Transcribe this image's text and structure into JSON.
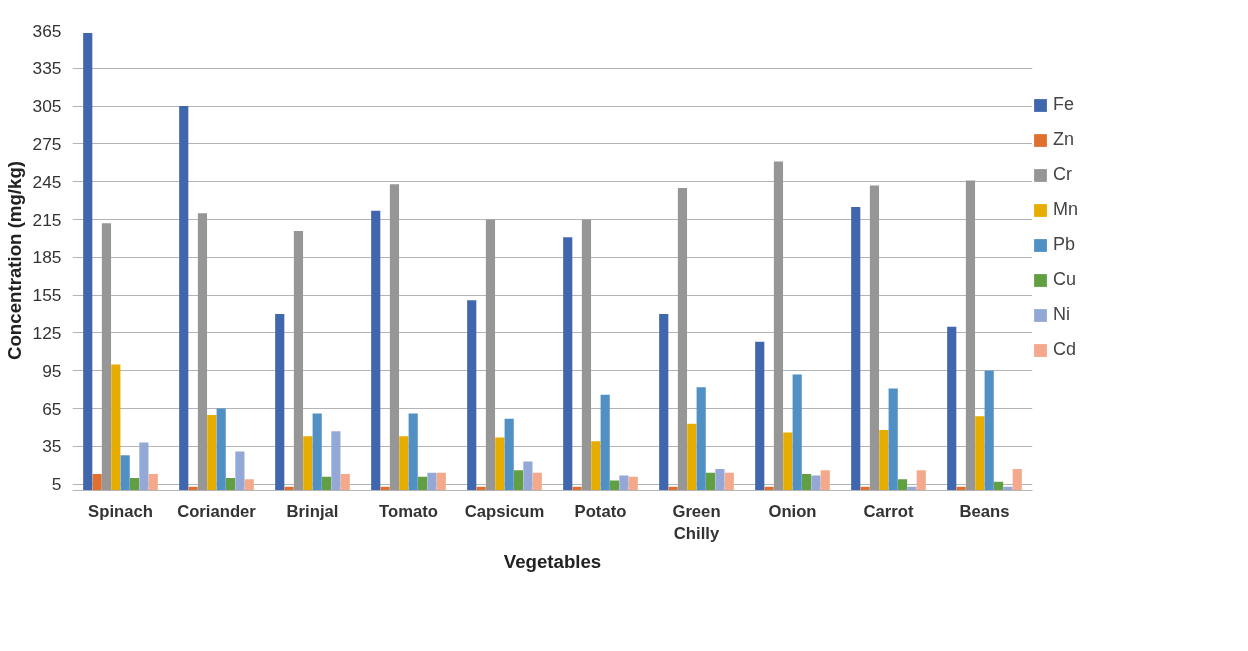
{
  "chart_data": {
    "type": "bar",
    "xlabel": "Vegetables",
    "ylabel": "Concentration (mg/kg)",
    "categories": [
      "Spinach",
      "Coriander",
      "Brinjal",
      "Tomato",
      "Capsicum",
      "Potato",
      "Green Chilly",
      "Onion",
      "Carrot",
      "Beans"
    ],
    "series": [
      {
        "name": "Fe",
        "color": "#4066ad",
        "values": [
          363,
          305,
          140,
          222,
          151,
          201,
          140,
          118,
          225,
          130
        ]
      },
      {
        "name": "Zn",
        "color": "#e07030",
        "values": [
          13,
          3,
          3,
          3,
          3,
          3,
          3,
          3,
          3,
          3
        ]
      },
      {
        "name": "Cr",
        "color": "#969696",
        "values": [
          212,
          220,
          206,
          243,
          215,
          215,
          240,
          261,
          242,
          246
        ]
      },
      {
        "name": "Mn",
        "color": "#e6ac00",
        "values": [
          100,
          60,
          43,
          43,
          42,
          39,
          53,
          46,
          48,
          59
        ]
      },
      {
        "name": "Pb",
        "color": "#5090c4",
        "values": [
          28,
          65,
          61,
          61,
          57,
          76,
          82,
          92,
          81,
          95
        ]
      },
      {
        "name": "Cu",
        "color": "#60a040",
        "values": [
          10,
          10,
          11,
          11,
          16,
          8,
          14,
          13,
          9,
          7
        ]
      },
      {
        "name": "Ni",
        "color": "#94a8d8",
        "values": [
          38,
          31,
          47,
          14,
          23,
          12,
          17,
          12,
          3,
          3
        ]
      },
      {
        "name": "Cd",
        "color": "#f4a88c",
        "values": [
          13,
          9,
          13,
          14,
          14,
          11,
          14,
          16,
          16,
          17
        ]
      }
    ],
    "ylim": [
      0,
      365
    ],
    "yticks": [
      5,
      35,
      65,
      95,
      125,
      155,
      185,
      215,
      245,
      275,
      305,
      335,
      365
    ],
    "grid": "y",
    "legend": "right"
  }
}
